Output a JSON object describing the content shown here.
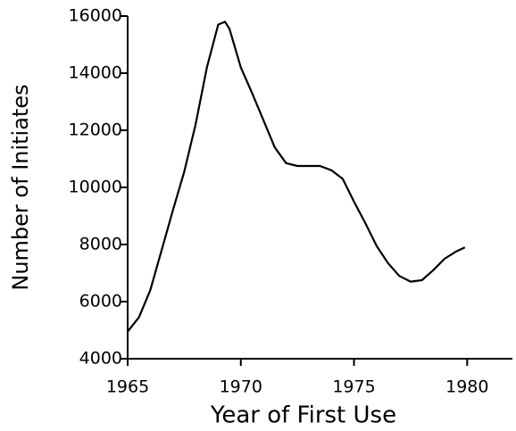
{
  "chart_data": {
    "type": "line",
    "xlabel": "Year of First Use",
    "ylabel": "Number of Initiates",
    "series": [
      {
        "color": "#000000",
        "x": [
          1965,
          1965.5,
          1966,
          1966.5,
          1967,
          1967.5,
          1968,
          1968.5,
          1969,
          1969.3,
          1969.5,
          1970,
          1970.5,
          1971,
          1971.5,
          1972,
          1972.5,
          1973,
          1973.5,
          1974,
          1974.5,
          1975,
          1975.5,
          1976,
          1976.5,
          1977,
          1977.5,
          1978,
          1978.5,
          1979,
          1979.5,
          1979.9
        ],
        "values": [
          4950,
          5450,
          6400,
          7800,
          9200,
          10550,
          12200,
          14200,
          15700,
          15800,
          15550,
          14200,
          13300,
          12350,
          11400,
          10850,
          10750,
          10750,
          10750,
          10600,
          10300,
          9500,
          8750,
          7950,
          7350,
          6900,
          6700,
          6750,
          7100,
          7500,
          7750,
          7900
        ]
      }
    ],
    "xlim": [
      1965,
      1982
    ],
    "xticks": [
      1965,
      1970,
      1975,
      1980
    ],
    "ylim": [
      4000,
      16000
    ],
    "yticks": [
      4000,
      6000,
      8000,
      10000,
      12000,
      14000,
      16000
    ],
    "grid": false
  }
}
